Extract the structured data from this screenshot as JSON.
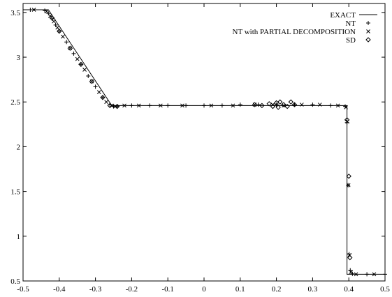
{
  "chart_data": {
    "type": "line",
    "title": "",
    "xlabel": "",
    "ylabel": "",
    "xlim": [
      -0.5,
      0.5
    ],
    "ylim": [
      0.5,
      3.6
    ],
    "x_ticks": [
      -0.5,
      -0.4,
      -0.3,
      -0.2,
      -0.1,
      0,
      0.1,
      0.2,
      0.3,
      0.4,
      0.5
    ],
    "x_tick_labels": [
      "-0.5",
      "-0.4",
      "-0.3",
      "-0.2",
      "-0.1",
      "0",
      "0.1",
      "0.2",
      "0.3",
      "0.4",
      "0.5"
    ],
    "y_ticks": [
      0.5,
      1,
      1.5,
      2,
      2.5,
      3,
      3.5
    ],
    "y_tick_labels": [
      "0.5",
      "1",
      "1.5",
      "2",
      "2.5",
      "3",
      "3.5"
    ],
    "grid": false,
    "legend_position": "top-right",
    "series": [
      {
        "name": "EXACT",
        "style": "line",
        "x": [
          -0.5,
          -0.43,
          -0.255,
          -0.24,
          0.395,
          0.395,
          0.5
        ],
        "y": [
          3.53,
          3.53,
          2.46,
          2.46,
          2.46,
          0.575,
          0.575
        ]
      },
      {
        "name": "NT",
        "style": "plus",
        "x": [
          -0.48,
          -0.44,
          -0.43,
          -0.42,
          -0.41,
          -0.4,
          -0.38,
          -0.36,
          -0.34,
          -0.32,
          -0.3,
          -0.28,
          -0.26,
          -0.25,
          -0.24,
          -0.2,
          -0.15,
          -0.1,
          -0.05,
          0.0,
          0.05,
          0.1,
          0.15,
          0.2,
          0.25,
          0.3,
          0.35,
          0.39,
          0.395,
          0.398,
          0.401,
          0.404,
          0.41,
          0.45,
          0.5
        ],
        "y": [
          3.53,
          3.52,
          3.49,
          3.43,
          3.36,
          3.29,
          3.17,
          3.04,
          2.92,
          2.79,
          2.67,
          2.55,
          2.47,
          2.45,
          2.45,
          2.46,
          2.46,
          2.46,
          2.46,
          2.46,
          2.46,
          2.47,
          2.47,
          2.47,
          2.47,
          2.47,
          2.46,
          2.45,
          2.27,
          1.57,
          0.8,
          0.62,
          0.58,
          0.575,
          0.575
        ]
      },
      {
        "name": "NT with PARTIAL DECOMPOSITION",
        "style": "cross",
        "x": [
          -0.47,
          -0.435,
          -0.425,
          -0.415,
          -0.405,
          -0.39,
          -0.37,
          -0.35,
          -0.33,
          -0.31,
          -0.29,
          -0.27,
          -0.255,
          -0.245,
          -0.22,
          -0.18,
          -0.12,
          -0.06,
          0.02,
          0.08,
          0.14,
          0.19,
          0.22,
          0.27,
          0.32,
          0.37,
          0.392,
          0.396,
          0.399,
          0.402,
          0.406,
          0.42,
          0.47
        ],
        "y": [
          3.53,
          3.51,
          3.46,
          3.4,
          3.33,
          3.23,
          3.1,
          2.98,
          2.86,
          2.73,
          2.61,
          2.5,
          2.46,
          2.45,
          2.46,
          2.46,
          2.46,
          2.46,
          2.46,
          2.46,
          2.47,
          2.47,
          2.46,
          2.47,
          2.47,
          2.46,
          2.44,
          2.28,
          1.57,
          0.79,
          0.6,
          0.575,
          0.575
        ]
      },
      {
        "name": "SD",
        "style": "diamond",
        "x": [
          -0.42,
          -0.4,
          -0.37,
          -0.34,
          -0.31,
          -0.28,
          -0.26,
          -0.24,
          0.14,
          0.16,
          0.18,
          0.19,
          0.2,
          0.205,
          0.21,
          0.22,
          0.23,
          0.24,
          0.25,
          0.395,
          0.4,
          0.403
        ],
        "y": [
          3.44,
          3.29,
          3.1,
          2.92,
          2.73,
          2.55,
          2.46,
          2.45,
          2.47,
          2.46,
          2.48,
          2.45,
          2.49,
          2.44,
          2.5,
          2.47,
          2.45,
          2.5,
          2.47,
          2.3,
          1.67,
          0.76
        ]
      }
    ]
  }
}
